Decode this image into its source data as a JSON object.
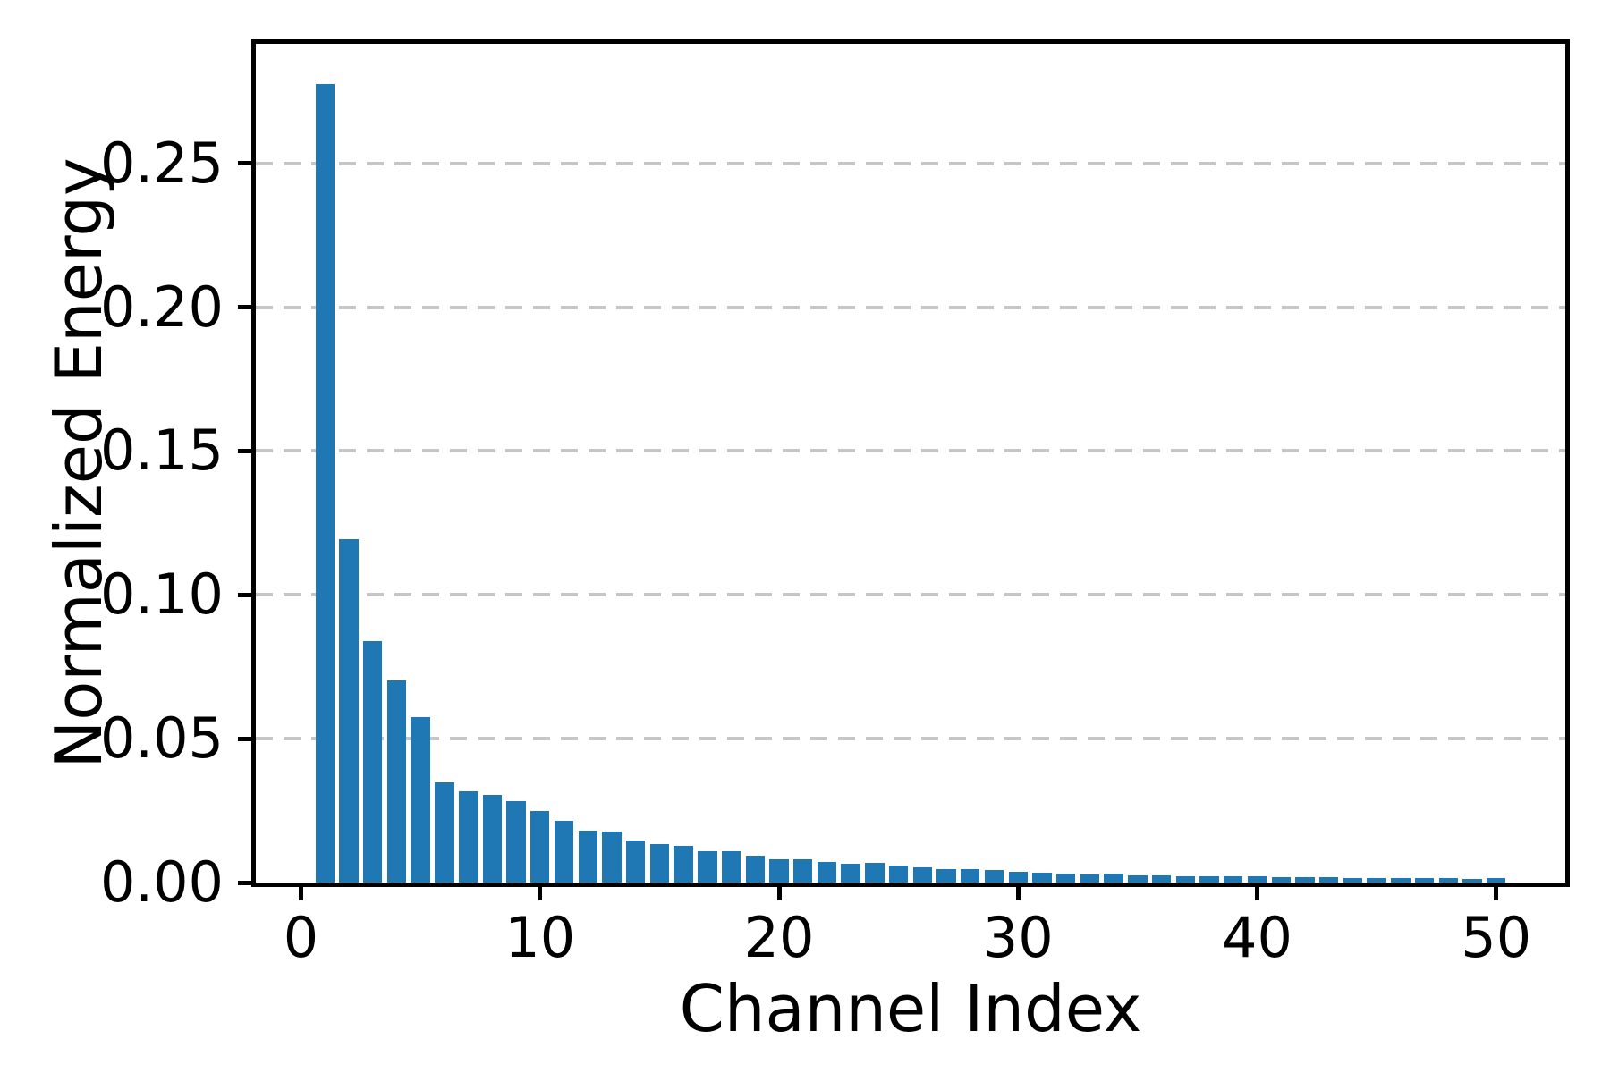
{
  "chart_data": {
    "type": "bar",
    "title": "",
    "xlabel": "Channel Index",
    "ylabel": "Normalized Energy",
    "x": [
      1,
      2,
      3,
      4,
      5,
      6,
      7,
      8,
      9,
      10,
      11,
      12,
      13,
      14,
      15,
      16,
      17,
      18,
      19,
      20,
      21,
      22,
      23,
      24,
      25,
      26,
      27,
      28,
      29,
      30,
      31,
      32,
      33,
      34,
      35,
      36,
      37,
      38,
      39,
      40,
      41,
      42,
      43,
      44,
      45,
      46,
      47,
      48,
      49,
      50
    ],
    "values": [
      0.2777,
      0.1195,
      0.0838,
      0.0704,
      0.0576,
      0.0348,
      0.0316,
      0.0306,
      0.0282,
      0.0249,
      0.0216,
      0.0181,
      0.0176,
      0.0146,
      0.0135,
      0.0126,
      0.011,
      0.0108,
      0.0093,
      0.008,
      0.0082,
      0.0071,
      0.0065,
      0.0068,
      0.0059,
      0.0054,
      0.0046,
      0.0047,
      0.0044,
      0.0037,
      0.0033,
      0.0031,
      0.0029,
      0.0031,
      0.0025,
      0.0026,
      0.0023,
      0.0023,
      0.0021,
      0.0021,
      0.002,
      0.0019,
      0.002,
      0.0017,
      0.0017,
      0.0016,
      0.0015,
      0.0015,
      0.0013,
      0.0014
    ],
    "xtick_values": [
      0,
      10,
      20,
      30,
      40,
      50
    ],
    "xtick_labels": [
      "0",
      "10",
      "20",
      "30",
      "40",
      "50"
    ],
    "ytick_values": [
      0.0,
      0.05,
      0.1,
      0.15,
      0.2,
      0.25
    ],
    "ytick_labels": [
      "0.00",
      "0.05",
      "0.10",
      "0.15",
      "0.20",
      "0.25"
    ],
    "xlim": [
      -1.89,
      52.89
    ],
    "ylim": [
      0,
      0.2916
    ],
    "bar_width": 0.8,
    "bar_color": "#1f77b4",
    "grid": {
      "axis": "y",
      "linestyle": "dashed",
      "color": "#c6c6c6",
      "on": true
    },
    "legend": null,
    "spine_color": "#000000",
    "background_color": "#ffffff"
  }
}
